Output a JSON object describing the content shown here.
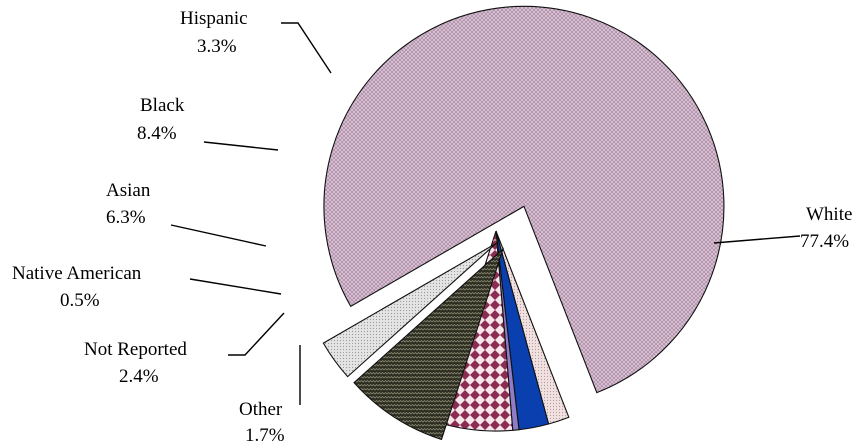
{
  "chart_data": {
    "type": "pie",
    "title": "",
    "unit": "%",
    "slices": [
      {
        "label": "White",
        "value": 77.4,
        "value_label": "77.4%",
        "color": "#d9c2d6",
        "pattern": "crosshatch",
        "exploded": true
      },
      {
        "label": "Other",
        "value": 1.7,
        "value_label": "1.7%",
        "color": "#ecdcdc",
        "pattern": "dots",
        "exploded": false
      },
      {
        "label": "Not Reported",
        "value": 2.4,
        "value_label": "2.4%",
        "color": "#0a3fb0",
        "pattern": "solid",
        "exploded": false
      },
      {
        "label": "Native American",
        "value": 0.5,
        "value_label": "0.5%",
        "color": "#8e7cc8",
        "pattern": "solid",
        "exploded": false
      },
      {
        "label": "Asian",
        "value": 6.3,
        "value_label": "6.3%",
        "color": "#f3dde3",
        "pattern": "diamond-check",
        "exploded": false
      },
      {
        "label": "Black",
        "value": 8.4,
        "value_label": "8.4%",
        "color": "#3a3a2c",
        "pattern": "zigzag",
        "exploded": true
      },
      {
        "label": "Hispanic",
        "value": 3.3,
        "value_label": "3.3%",
        "color": "#dcdcdc",
        "pattern": "dots",
        "exploded": true
      }
    ]
  }
}
